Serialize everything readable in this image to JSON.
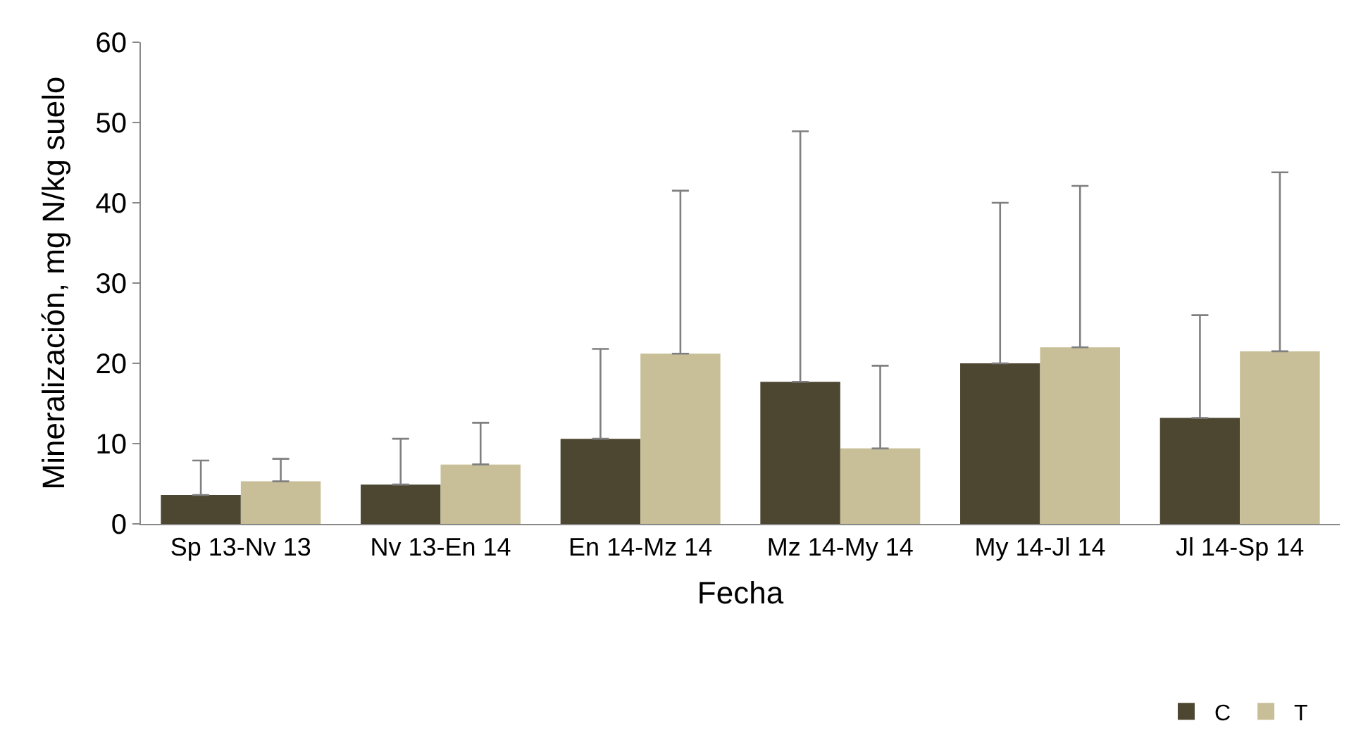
{
  "chart_data": {
    "type": "bar",
    "xlabel": "Fecha",
    "ylabel": "Mineralización, mg N/kg suelo",
    "categories": [
      "Sp 13-Nv 13",
      "Nv 13-En 14",
      "En 14-Mz 14",
      "Mz 14-My 14",
      "My 14-Jl 14",
      "Jl 14-Sp 14"
    ],
    "series": [
      {
        "name": "C",
        "color": "#4d4630",
        "values": [
          3.6,
          4.9,
          10.6,
          17.7,
          20.0,
          13.2
        ],
        "errors": [
          [
            3.6,
            7.9
          ],
          [
            4.9,
            10.6
          ],
          [
            10.6,
            21.8
          ],
          [
            17.7,
            48.9
          ],
          [
            20.0,
            40.0
          ],
          [
            13.2,
            26.0
          ]
        ]
      },
      {
        "name": "T",
        "color": "#c8bf98",
        "values": [
          5.3,
          7.4,
          21.2,
          9.4,
          22.0,
          21.5
        ],
        "errors": [
          [
            5.3,
            8.1
          ],
          [
            7.4,
            12.6
          ],
          [
            21.2,
            41.5
          ],
          [
            9.4,
            19.7
          ],
          [
            22.0,
            42.1
          ],
          [
            21.5,
            43.8
          ]
        ]
      }
    ],
    "ylim": [
      0,
      60
    ],
    "yticks": [
      0,
      10,
      20,
      30,
      40,
      50,
      60
    ],
    "legend": "bottom right"
  }
}
